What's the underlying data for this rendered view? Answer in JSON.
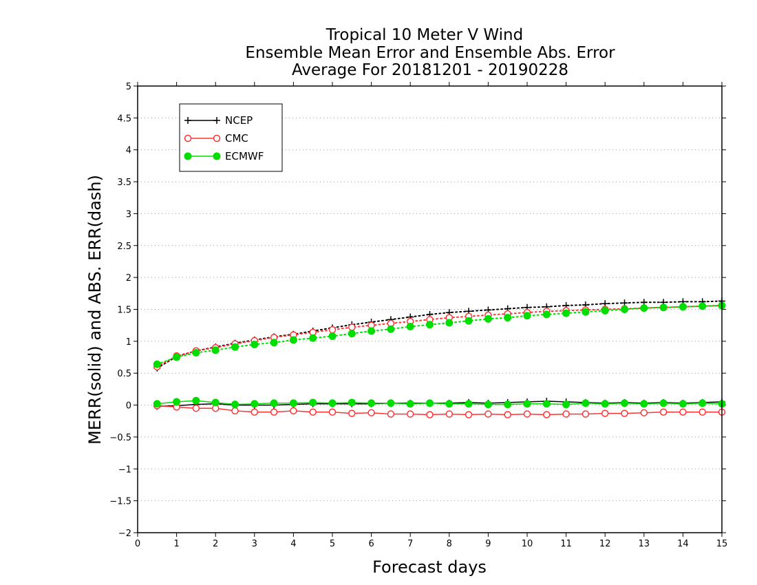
{
  "chart_data": {
    "type": "line",
    "title": [
      "Tropical 10 Meter V Wind",
      "Ensemble Mean Error and Ensemble Abs. Error",
      "Average For 20181201 - 20190228"
    ],
    "xlabel": "Forecast days",
    "ylabel": "MERR(solid) and ABS. ERR(dash)",
    "xlim": [
      0,
      15
    ],
    "ylim": [
      -2,
      5
    ],
    "x_ticks": [
      "0",
      "1",
      "2",
      "3",
      "4",
      "5",
      "6",
      "7",
      "8",
      "9",
      "10",
      "11",
      "12",
      "13",
      "14",
      "15"
    ],
    "y_ticks": [
      "−2",
      "−1.5",
      "−1",
      "−0.5",
      "0",
      "0.5",
      "1",
      "1.5",
      "2",
      "2.5",
      "3",
      "3.5",
      "4",
      "4.5",
      "5"
    ],
    "grid": "horizontal dotted",
    "legend_position": "top-left",
    "x": [
      0.5,
      1,
      1.5,
      2,
      2.5,
      3,
      3.5,
      4,
      4.5,
      5,
      5.5,
      6,
      6.5,
      7,
      7.5,
      8,
      8.5,
      9,
      9.5,
      10,
      10.5,
      11,
      11.5,
      12,
      12.5,
      13,
      13.5,
      14,
      14.5,
      15
    ],
    "series": [
      {
        "name": "NCEP",
        "color": "#000000",
        "marker": "plus",
        "merr": [
          -0.02,
          -0.01,
          0.01,
          0.02,
          0.0,
          0.0,
          0.0,
          0.01,
          0.02,
          0.02,
          0.02,
          0.02,
          0.03,
          0.03,
          0.03,
          0.03,
          0.04,
          0.03,
          0.04,
          0.05,
          0.06,
          0.05,
          0.04,
          0.03,
          0.04,
          0.03,
          0.04,
          0.03,
          0.04,
          0.05
        ],
        "abs_err": [
          0.58,
          0.76,
          0.85,
          0.91,
          0.97,
          1.02,
          1.07,
          1.11,
          1.16,
          1.21,
          1.26,
          1.3,
          1.34,
          1.38,
          1.42,
          1.45,
          1.47,
          1.49,
          1.51,
          1.53,
          1.54,
          1.56,
          1.57,
          1.59,
          1.6,
          1.61,
          1.61,
          1.62,
          1.62,
          1.63
        ]
      },
      {
        "name": "CMC",
        "color": "#ff3333",
        "marker": "open-circle",
        "merr": [
          -0.01,
          -0.03,
          -0.05,
          -0.05,
          -0.09,
          -0.11,
          -0.11,
          -0.09,
          -0.11,
          -0.11,
          -0.13,
          -0.12,
          -0.14,
          -0.14,
          -0.15,
          -0.14,
          -0.15,
          -0.14,
          -0.15,
          -0.14,
          -0.15,
          -0.14,
          -0.14,
          -0.13,
          -0.13,
          -0.12,
          -0.11,
          -0.11,
          -0.11,
          -0.11
        ],
        "abs_err": [
          0.6,
          0.77,
          0.85,
          0.9,
          0.96,
          1.01,
          1.06,
          1.1,
          1.14,
          1.18,
          1.22,
          1.25,
          1.28,
          1.31,
          1.34,
          1.37,
          1.39,
          1.41,
          1.43,
          1.45,
          1.47,
          1.48,
          1.49,
          1.5,
          1.51,
          1.52,
          1.53,
          1.54,
          1.55,
          1.56
        ]
      },
      {
        "name": "ECMWF",
        "color": "#00dd00",
        "marker": "filled-circle",
        "merr": [
          0.02,
          0.05,
          0.07,
          0.04,
          0.01,
          0.02,
          0.03,
          0.03,
          0.04,
          0.03,
          0.04,
          0.03,
          0.03,
          0.02,
          0.03,
          0.02,
          0.02,
          0.01,
          0.01,
          0.02,
          0.02,
          0.01,
          0.03,
          0.02,
          0.03,
          0.02,
          0.03,
          0.02,
          0.03,
          0.02
        ],
        "abs_err": [
          0.64,
          0.75,
          0.82,
          0.86,
          0.91,
          0.95,
          0.98,
          1.02,
          1.05,
          1.08,
          1.12,
          1.16,
          1.19,
          1.23,
          1.26,
          1.29,
          1.32,
          1.35,
          1.37,
          1.4,
          1.42,
          1.44,
          1.46,
          1.48,
          1.5,
          1.52,
          1.53,
          1.54,
          1.55,
          1.56
        ]
      }
    ]
  }
}
